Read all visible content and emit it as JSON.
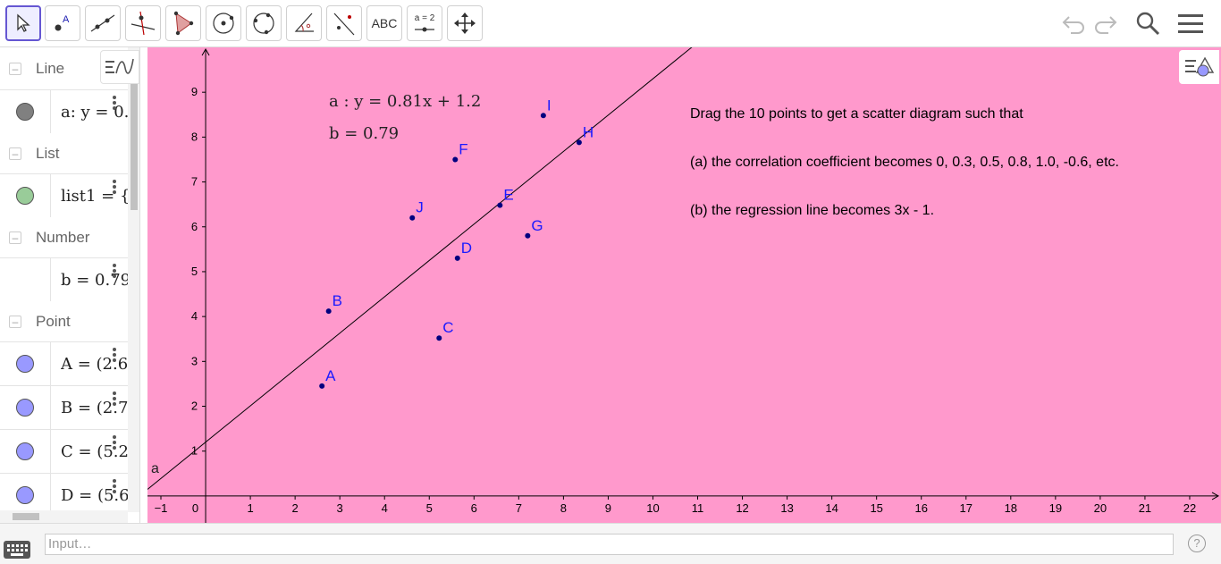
{
  "toolbar": {
    "tools": [
      {
        "name": "move-tool",
        "active": true
      },
      {
        "name": "point-tool"
      },
      {
        "name": "line-tool"
      },
      {
        "name": "perpendicular-line-tool"
      },
      {
        "name": "polygon-tool"
      },
      {
        "name": "circle-center-point-tool"
      },
      {
        "name": "circle-three-points-tool"
      },
      {
        "name": "angle-tool"
      },
      {
        "name": "reflect-tool"
      },
      {
        "name": "text-tool",
        "label": "ABC"
      },
      {
        "name": "slider-tool",
        "label": "a = 2"
      },
      {
        "name": "move-graphics-view-tool"
      }
    ],
    "icons": [
      "undo-icon",
      "redo-icon",
      "search-icon",
      "menu-icon"
    ]
  },
  "algebra": {
    "categories": {
      "line": "Line",
      "list": "List",
      "number": "Number",
      "point": "Point"
    },
    "items": {
      "line_a": "a: y = 0.",
      "list1": "list1 = {(",
      "number_b": "b = 0.79",
      "point_a": "A = (2.6",
      "point_b": "B = (2.7",
      "point_c": "C = (5.2",
      "point_d": "D = (5.6"
    },
    "colors": {
      "line": "#808080",
      "list": "#99cc99",
      "point": "#9999ff"
    }
  },
  "graphics": {
    "background": "#ff99cc",
    "equation_a": "a :  y = 0.81x + 1.2",
    "value_b": "b  =  0.79",
    "line_label": "a",
    "instructions": [
      "Drag the 10 points to get a scatter diagram such that",
      "(a)  the correlation coefficient becomes 0, 0.3, 0.5, 0.8, 1.0, -0.6, etc.",
      "(b) the regression line becomes 3x - 1."
    ],
    "origin_label": "0"
  },
  "chart_data": {
    "type": "scatter",
    "x_ticks": [
      -1,
      1,
      2,
      3,
      4,
      5,
      6,
      7,
      8,
      9,
      10,
      11,
      12,
      13,
      14,
      15,
      16,
      17,
      18,
      19,
      20,
      21,
      22
    ],
    "y_ticks": [
      1,
      2,
      3,
      4,
      5,
      6,
      7,
      8,
      9
    ],
    "xlim": [
      -1.3,
      22.7
    ],
    "ylim": [
      -0.6,
      10
    ],
    "points": [
      {
        "label": "A",
        "x": 2.6,
        "y": 2.45
      },
      {
        "label": "B",
        "x": 2.75,
        "y": 4.12
      },
      {
        "label": "C",
        "x": 5.22,
        "y": 3.52
      },
      {
        "label": "D",
        "x": 5.63,
        "y": 5.3
      },
      {
        "label": "E",
        "x": 6.58,
        "y": 6.48
      },
      {
        "label": "F",
        "x": 5.58,
        "y": 7.5
      },
      {
        "label": "G",
        "x": 7.2,
        "y": 5.8
      },
      {
        "label": "H",
        "x": 8.35,
        "y": 7.88
      },
      {
        "label": "I",
        "x": 7.55,
        "y": 8.48
      },
      {
        "label": "J",
        "x": 4.62,
        "y": 6.2
      }
    ],
    "regression": {
      "slope": 0.81,
      "intercept": 1.2
    }
  },
  "input_bar": {
    "placeholder": "Input…",
    "help_label": "?"
  }
}
